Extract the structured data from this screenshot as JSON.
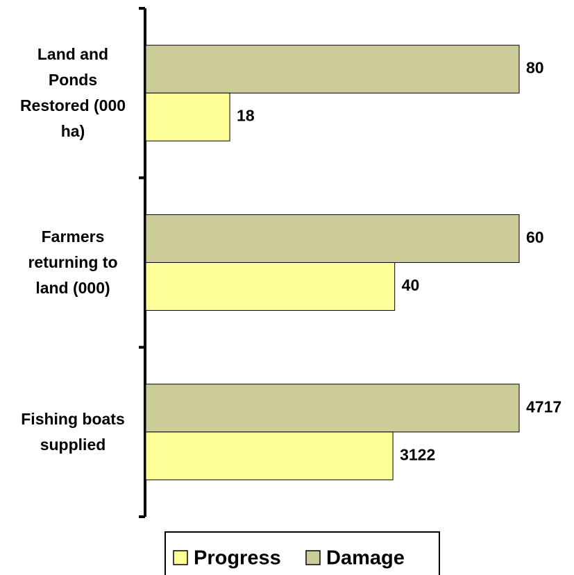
{
  "chart_data": {
    "type": "bar",
    "orientation": "horizontal",
    "categories": [
      "Land and Ponds Restored (000 ha)",
      "Farmers returning to land (000)",
      "Fishing boats supplied"
    ],
    "series": [
      {
        "name": "Progress",
        "color": "#ffff99",
        "values": [
          18,
          40,
          3122
        ]
      },
      {
        "name": "Damage",
        "color": "#cccc99",
        "values": [
          80,
          60,
          4717
        ]
      }
    ],
    "legend": "bottom"
  }
}
